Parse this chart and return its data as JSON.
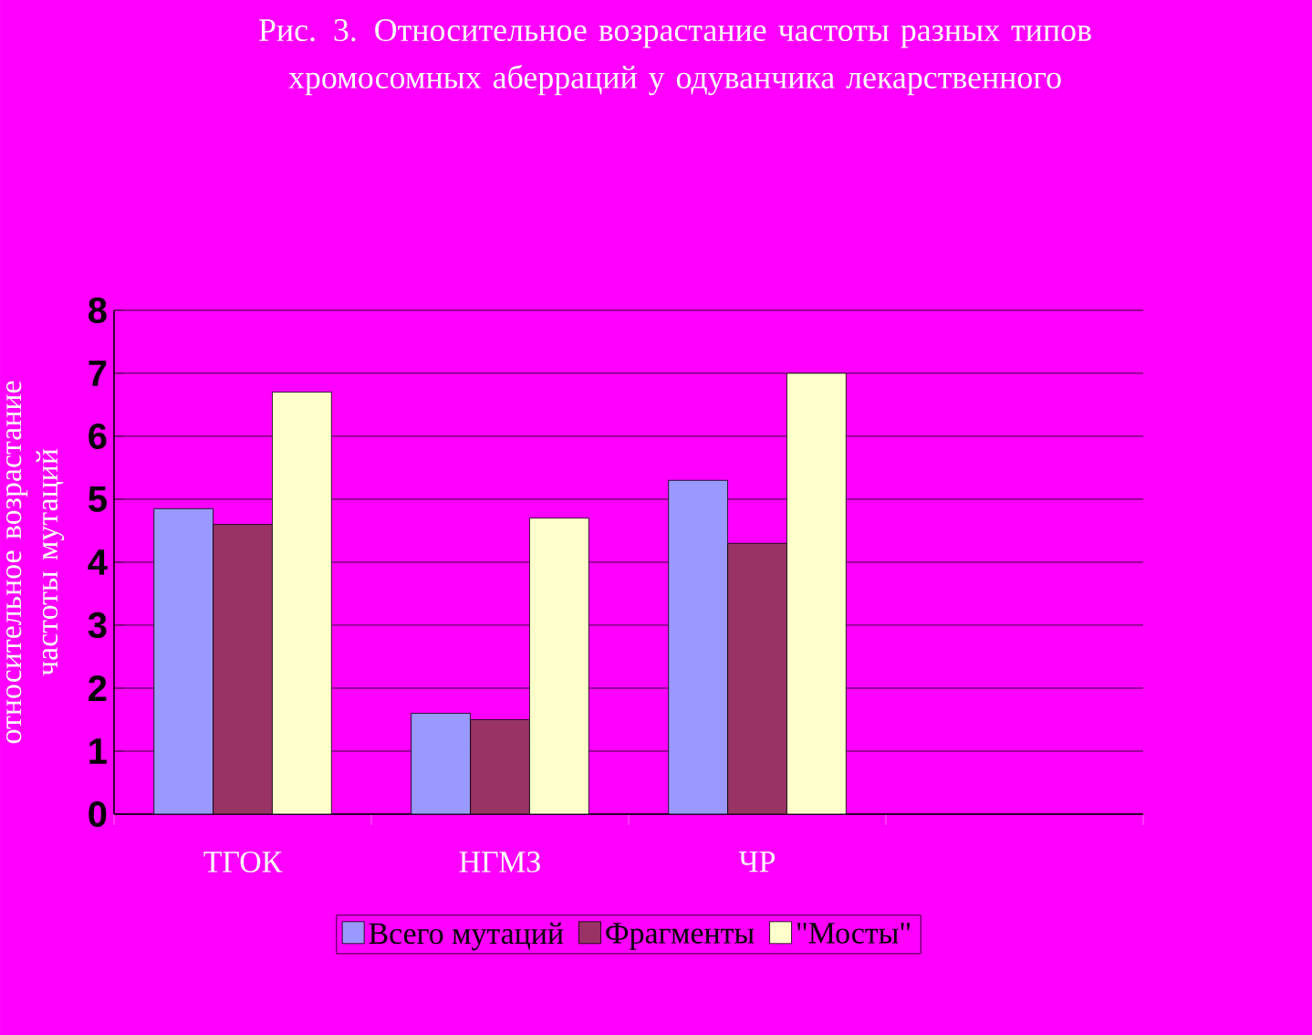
{
  "chart_data": {
    "type": "bar",
    "title": "Рис. 3. Относительное возрастание частоты разных типов хромосомных аберраций у одуванчика лекарственного",
    "ylabel": "относительное возрастание частоты мутаций",
    "categories": [
      "ТГОК",
      "НГМЗ",
      "ЧР",
      null
    ],
    "series": [
      {
        "name": "Всего мутаций",
        "color": "#9999ff",
        "values": [
          4.85,
          1.6,
          5.3,
          null
        ]
      },
      {
        "name": "Фрагменты",
        "color": "#993366",
        "values": [
          4.6,
          1.5,
          4.3,
          null
        ]
      },
      {
        "name": "\"Мосты\"",
        "color": "#ffffcc",
        "values": [
          6.7,
          4.7,
          7.0,
          null
        ]
      }
    ],
    "ylim": [
      0,
      8
    ],
    "yticks": [
      0,
      1,
      2,
      3,
      4,
      5,
      6,
      7,
      8
    ],
    "grid": "y",
    "legend": "bottom"
  }
}
